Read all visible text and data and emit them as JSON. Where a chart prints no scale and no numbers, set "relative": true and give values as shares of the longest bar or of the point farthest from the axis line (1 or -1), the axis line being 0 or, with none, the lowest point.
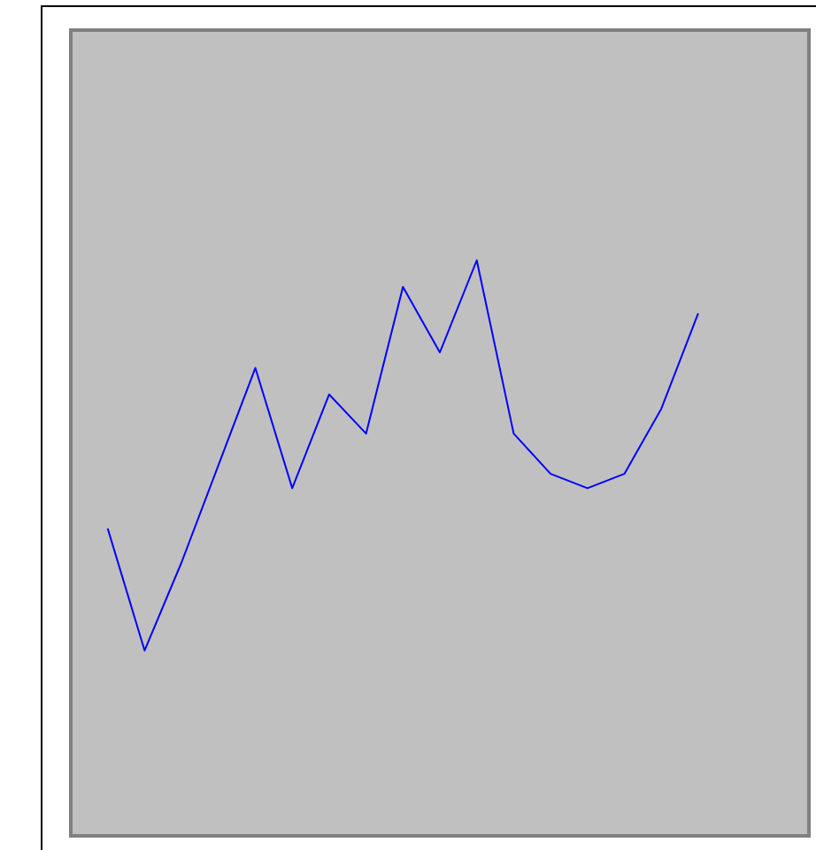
{
  "chart_data": {
    "type": "line",
    "relative": true,
    "categories": [
      null,
      null,
      null,
      null,
      null,
      null,
      null,
      null,
      null,
      null,
      null,
      null,
      null,
      null,
      null,
      null,
      null
    ],
    "color": "#0000ff",
    "values": [
      0.534,
      0.322,
      0.475,
      0.644,
      0.813,
      0.604,
      0.767,
      0.699,
      0.954,
      0.84,
      1,
      0.699,
      0.629,
      0.604,
      0.629,
      0.742,
      0.908
    ]
  }
}
